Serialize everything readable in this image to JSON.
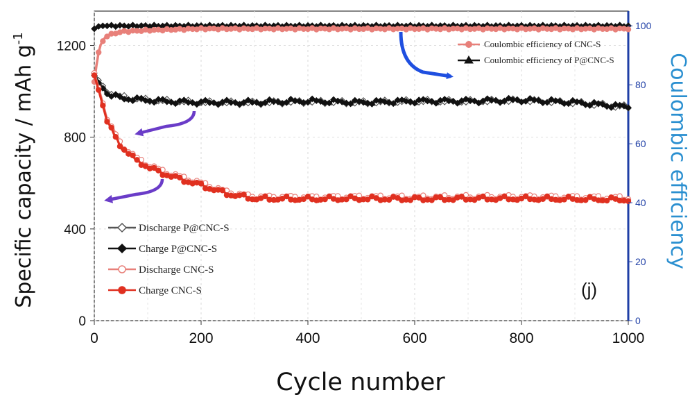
{
  "chart_data": {
    "type": "line",
    "xlabel": "Cycle number",
    "ylabel_left": "Specific capacity / mAh g",
    "ylabel_left_sup": "-1",
    "ylabel_right": "Coulombic efficiency",
    "panel_label": "(j)",
    "xlim": [
      0,
      1000
    ],
    "ylim_left": [
      0,
      1350
    ],
    "ylim_right": [
      0,
      105
    ],
    "x_ticks": [
      "0",
      "200",
      "400",
      "600",
      "800",
      "1000"
    ],
    "y_left_ticks": [
      "0",
      "400",
      "800",
      "1200"
    ],
    "y_right_ticks": [
      "0",
      "20",
      "40",
      "60",
      "80",
      "100"
    ],
    "series": [
      {
        "name": "Discharge P@CNC-S",
        "axis": "left",
        "color": "#555555",
        "marker": "open-diamond",
        "x": [
          0,
          10,
          25,
          50,
          100,
          150,
          200,
          300,
          400,
          500,
          600,
          700,
          800,
          900,
          1000
        ],
        "y": [
          1080,
          1040,
          1000,
          975,
          960,
          955,
          950,
          950,
          955,
          950,
          955,
          955,
          960,
          950,
          930
        ]
      },
      {
        "name": "Charge P@CNC-S",
        "axis": "left",
        "color": "#111111",
        "marker": "filled-diamond",
        "x": [
          0,
          10,
          25,
          50,
          100,
          150,
          200,
          300,
          400,
          500,
          600,
          700,
          800,
          900,
          1000
        ],
        "y": [
          1070,
          1030,
          990,
          970,
          962,
          955,
          952,
          952,
          958,
          952,
          958,
          958,
          962,
          952,
          932
        ]
      },
      {
        "name": "Discharge CNC-S",
        "axis": "left",
        "color": "#e8807a",
        "marker": "open-circle",
        "x": [
          0,
          10,
          25,
          50,
          75,
          100,
          125,
          150,
          200,
          250,
          300,
          400,
          500,
          600,
          700,
          800,
          900,
          1000
        ],
        "y": [
          1080,
          1000,
          870,
          770,
          715,
          680,
          655,
          635,
          600,
          560,
          540,
          538,
          540,
          538,
          540,
          540,
          538,
          535
        ]
      },
      {
        "name": "Charge CNC-S",
        "axis": "left",
        "color": "#e03020",
        "marker": "filled-circle",
        "x": [
          0,
          10,
          25,
          50,
          75,
          100,
          125,
          150,
          200,
          250,
          300,
          400,
          500,
          600,
          700,
          800,
          900,
          1000
        ],
        "y": [
          1070,
          990,
          860,
          760,
          705,
          670,
          645,
          625,
          590,
          552,
          532,
          530,
          532,
          530,
          532,
          532,
          530,
          527
        ]
      },
      {
        "name": "Coulombic efficiency of CNC-S",
        "axis": "right",
        "color": "#e8807a",
        "marker": "half-circle",
        "x": [
          0,
          5,
          10,
          20,
          30,
          50,
          100,
          200,
          400,
          600,
          800,
          1000
        ],
        "y": [
          81,
          88,
          93,
          96,
          97,
          98,
          98.5,
          99,
          99,
          99,
          99,
          99
        ]
      },
      {
        "name": "Coulombic efficiency of P@CNC-S",
        "axis": "right",
        "color": "#111111",
        "marker": "half-triangle",
        "x": [
          0,
          10,
          50,
          100,
          200,
          400,
          600,
          800,
          1000
        ],
        "y": [
          99,
          100,
          100,
          100,
          100,
          100,
          100,
          100,
          100
        ]
      }
    ],
    "legend_bottom": [
      "Discharge P@CNC-S",
      "Charge P@CNC-S",
      "Discharge CNC-S",
      "Charge CNC-S"
    ],
    "legend_top": [
      "Coulombic efficiency of CNC-S",
      "Coulombic efficiency of P@CNC-S"
    ],
    "colors": {
      "blue_arrow": "#1f4fe0",
      "purple_arrow": "#6a3cc8",
      "right_axis": "#1f3fa6",
      "right_title": "#2a8fd0"
    },
    "grid": true,
    "legend_placement": "bottom-left and top-right"
  }
}
